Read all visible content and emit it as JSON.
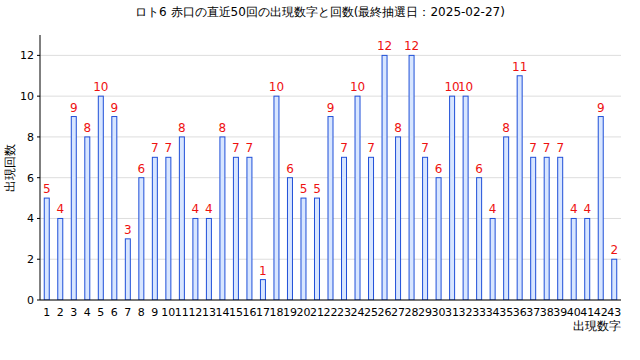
{
  "chart_data": {
    "type": "bar",
    "title": "ロト6 赤口の直近50回の出現数字と回数(最終抽選日：2025-02-27)",
    "x_label": "出現数字",
    "y_label": "出現回数",
    "categories": [
      "1",
      "2",
      "3",
      "4",
      "5",
      "6",
      "7",
      "8",
      "9",
      "10",
      "11",
      "12",
      "13",
      "14",
      "15",
      "16",
      "17",
      "18",
      "19",
      "20",
      "21",
      "22",
      "23",
      "24",
      "25",
      "26",
      "27",
      "28",
      "29",
      "30",
      "31",
      "32",
      "33",
      "34",
      "35",
      "36",
      "37",
      "38",
      "39",
      "40",
      "41",
      "42",
      "43"
    ],
    "values": [
      5,
      4,
      9,
      8,
      10,
      9,
      3,
      6,
      7,
      7,
      8,
      4,
      4,
      8,
      7,
      7,
      1,
      10,
      6,
      5,
      5,
      9,
      7,
      10,
      7,
      12,
      8,
      12,
      7,
      6,
      10,
      10,
      6,
      4,
      8,
      11,
      7,
      7,
      7,
      4,
      4,
      9,
      2
    ],
    "color": "#1f4fd8",
    "ylim": [
      0,
      13
    ],
    "yticks": [
      0,
      2,
      4,
      6,
      8,
      10,
      12
    ],
    "grid": true,
    "data_labels": true
  }
}
